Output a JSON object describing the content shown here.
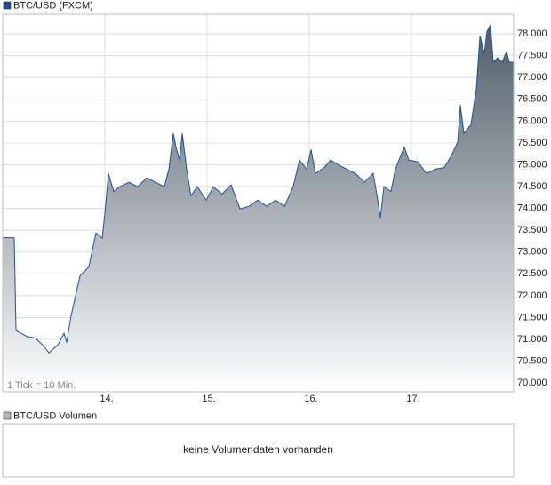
{
  "chart_data": {
    "type": "area",
    "series": [
      {
        "name": "BTC/USD (FXCM)",
        "color": "#1f4e9c",
        "x": [
          13.0,
          13.113,
          13.13,
          13.235,
          13.322,
          13.409,
          13.452,
          13.539,
          13.6,
          13.626,
          13.67,
          13.757,
          13.843,
          13.913,
          13.974,
          14.0,
          14.035,
          14.087,
          14.148,
          14.235,
          14.322,
          14.409,
          14.496,
          14.583,
          14.626,
          14.67,
          14.696,
          14.73,
          14.757,
          14.8,
          14.843,
          14.904,
          14.991,
          15.061,
          15.148,
          15.235,
          15.322,
          15.409,
          15.496,
          15.583,
          15.67,
          15.757,
          15.843,
          15.904,
          15.974,
          16.017,
          16.061,
          16.148,
          16.209,
          16.278,
          16.365,
          16.452,
          16.539,
          16.626,
          16.67,
          16.696,
          16.73,
          16.8,
          16.843,
          16.93,
          16.974,
          17.061,
          17.148,
          17.235,
          17.322,
          17.391,
          17.452,
          17.478,
          17.513,
          17.583,
          17.635,
          17.67,
          17.713,
          17.739,
          17.774,
          17.8,
          17.843,
          17.887,
          17.93,
          17.957,
          18.0
        ],
        "values": [
          73330,
          73330,
          71200,
          71070,
          71030,
          70830,
          70690,
          70870,
          71140,
          70930,
          71540,
          72460,
          72660,
          73440,
          73320,
          73890,
          74800,
          74390,
          74500,
          74600,
          74500,
          74700,
          74600,
          74500,
          74900,
          75720,
          75410,
          75110,
          75720,
          74900,
          74290,
          74500,
          74190,
          74500,
          74330,
          74540,
          73990,
          74050,
          74190,
          74050,
          74190,
          74050,
          74500,
          75110,
          74900,
          75350,
          74800,
          74940,
          75110,
          75010,
          74900,
          74800,
          74600,
          74800,
          74190,
          73780,
          74500,
          74390,
          74900,
          75410,
          75110,
          75070,
          74800,
          74900,
          74940,
          75210,
          75520,
          76370,
          75720,
          75920,
          76740,
          77960,
          77550,
          78060,
          78200,
          77350,
          77450,
          77350,
          77590,
          77350,
          77350
        ]
      }
    ],
    "xlim": [
      13,
      18
    ],
    "xticks": [
      {
        "value": 14,
        "label": "14."
      },
      {
        "value": 15,
        "label": "15."
      },
      {
        "value": 16,
        "label": "16."
      },
      {
        "value": 17,
        "label": "17."
      }
    ],
    "ylim": [
      69800,
      78450
    ],
    "yticks": [
      {
        "value": 70000,
        "label": "70.000"
      },
      {
        "value": 70500,
        "label": "70.500"
      },
      {
        "value": 71000,
        "label": "71.000"
      },
      {
        "value": 71500,
        "label": "71.500"
      },
      {
        "value": 72000,
        "label": "72.000"
      },
      {
        "value": 72500,
        "label": "72.500"
      },
      {
        "value": 73000,
        "label": "73.000"
      },
      {
        "value": 73500,
        "label": "73.500"
      },
      {
        "value": 74000,
        "label": "74.000"
      },
      {
        "value": 74500,
        "label": "74.500"
      },
      {
        "value": 75000,
        "label": "75.000"
      },
      {
        "value": 75500,
        "label": "75.500"
      },
      {
        "value": 76000,
        "label": "76.000"
      },
      {
        "value": 76500,
        "label": "76.500"
      },
      {
        "value": 77000,
        "label": "77.000"
      },
      {
        "value": 77500,
        "label": "77.500"
      },
      {
        "value": 78000,
        "label": "78.000"
      }
    ],
    "grid": true,
    "annotation": "1 Tick = 10 Min.",
    "volume_panel": {
      "name": "BTC/USD Volumen",
      "color": "#b4b4b4",
      "message": "keine Volumendaten vorhanden"
    }
  }
}
